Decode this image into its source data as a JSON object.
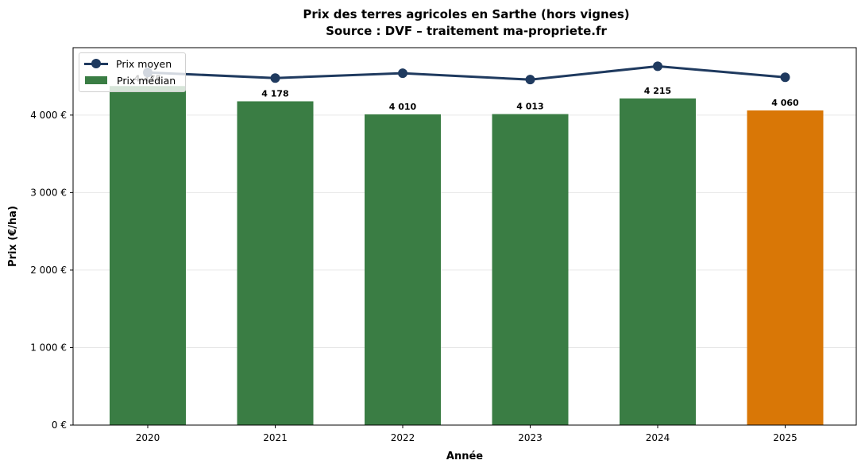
{
  "chart_data": {
    "type": "bar",
    "title": "Prix des terres agricoles en Sarthe (hors vignes)",
    "subtitle": "Source : DVF – traitement ma-propriete.fr",
    "xlabel": "Année",
    "ylabel": "Prix (€/ha)",
    "categories": [
      "2020",
      "2021",
      "2022",
      "2023",
      "2024",
      "2025"
    ],
    "series": [
      {
        "name": "Prix médian",
        "type": "bar",
        "values": [
          4375,
          4178,
          4010,
          4013,
          4215,
          4060
        ],
        "labels": [
          "4 375",
          "4 178",
          "4 010",
          "4 013",
          "4 215",
          "4 060"
        ],
        "colors": [
          "#3a7d44",
          "#3a7d44",
          "#3a7d44",
          "#3a7d44",
          "#3a7d44",
          "#d97706"
        ]
      },
      {
        "name": "Prix moyen",
        "type": "line",
        "values": [
          4550,
          4478,
          4540,
          4458,
          4630,
          4488
        ],
        "color": "#1f3a5f"
      }
    ],
    "yticks": [
      "0 €",
      "1 000 €",
      "2 000 €",
      "3 000 €",
      "4 000 €"
    ],
    "ylim": [
      0,
      4870
    ],
    "grid": "y",
    "legend_position": "upper left"
  },
  "legend": {
    "mean": "Prix moyen",
    "median": "Prix médian"
  }
}
